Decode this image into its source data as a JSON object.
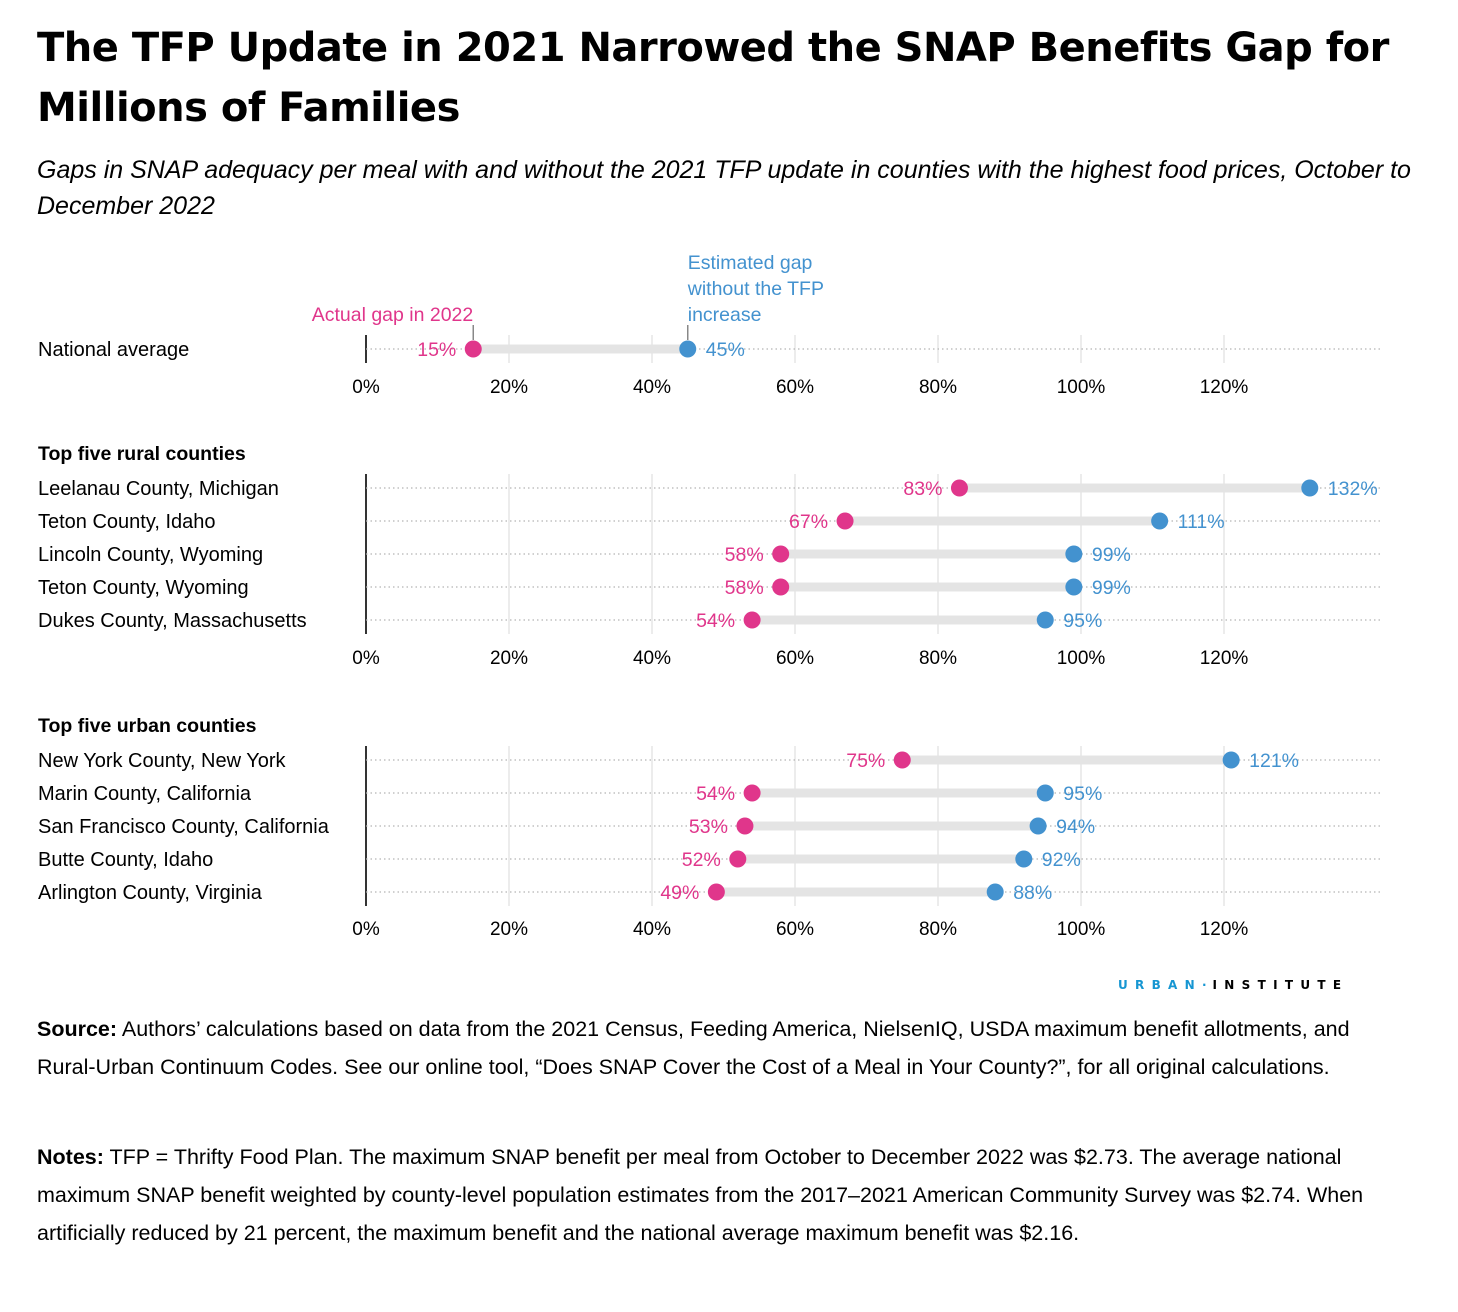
{
  "title": "The TFP Update in 2021 Narrowed the SNAP Benefits Gap for Millions of Families",
  "subtitle": "Gaps in SNAP adequacy per meal with and without the 2021 TFP update in counties with the highest food prices, October to December 2022",
  "colors": {
    "actual": "#e0368b",
    "estimated": "#4392cf",
    "track": "#e4e4e4",
    "grid": "#d9d9d9"
  },
  "chart_data": {
    "type": "dumbbell",
    "xlim": [
      0,
      140
    ],
    "xticks": [
      0,
      20,
      40,
      60,
      80,
      100,
      120
    ],
    "tick_labels": [
      "0%",
      "20%",
      "40%",
      "60%",
      "80%",
      "100%",
      "120%"
    ],
    "annotations": {
      "actual": "Actual gap in 2022",
      "estimated": [
        "Estimated gap",
        "without the TFP",
        "increase"
      ]
    },
    "panels": [
      {
        "heading": "",
        "rows": [
          {
            "label": "National average",
            "actual": 15,
            "estimated": 45,
            "actual_label": "15%",
            "estimated_label": "45%"
          }
        ]
      },
      {
        "heading": "Top five rural counties",
        "rows": [
          {
            "label": "Leelanau County, Michigan",
            "actual": 83,
            "estimated": 132,
            "actual_label": "83%",
            "estimated_label": "132%"
          },
          {
            "label": "Teton County, Idaho",
            "actual": 67,
            "estimated": 111,
            "actual_label": "67%",
            "estimated_label": "111%"
          },
          {
            "label": "Lincoln County, Wyoming",
            "actual": 58,
            "estimated": 99,
            "actual_label": "58%",
            "estimated_label": "99%"
          },
          {
            "label": "Teton County, Wyoming",
            "actual": 58,
            "estimated": 99,
            "actual_label": "58%",
            "estimated_label": "99%"
          },
          {
            "label": "Dukes County, Massachusetts",
            "actual": 54,
            "estimated": 95,
            "actual_label": "54%",
            "estimated_label": "95%"
          }
        ]
      },
      {
        "heading": "Top five urban counties",
        "rows": [
          {
            "label": "New York County, New York",
            "actual": 75,
            "estimated": 121,
            "actual_label": "75%",
            "estimated_label": "121%"
          },
          {
            "label": "Marin County, California",
            "actual": 54,
            "estimated": 95,
            "actual_label": "54%",
            "estimated_label": "95%"
          },
          {
            "label": "San Francisco County, California",
            "actual": 53,
            "estimated": 94,
            "actual_label": "53%",
            "estimated_label": "94%"
          },
          {
            "label": "Butte County, Idaho",
            "actual": 52,
            "estimated": 92,
            "actual_label": "52%",
            "estimated_label": "92%"
          },
          {
            "label": "Arlington County, Virginia",
            "actual": 49,
            "estimated": 88,
            "actual_label": "49%",
            "estimated_label": "88%"
          }
        ]
      }
    ]
  },
  "logo": {
    "left": "URBAN",
    "separator": "·",
    "right": "INSTITUTE"
  },
  "source": {
    "label": "Source:",
    "text": " Authors’ calculations based on data from the 2021 Census, Feeding America, NielsenIQ, USDA maximum benefit allotments, and Rural-Urban Continuum Codes. See our online tool, “Does SNAP Cover the Cost of a Meal in Your County?”, for all original calculations."
  },
  "notes": {
    "label": "Notes:",
    "text": " TFP = Thrifty Food Plan. The maximum SNAP benefit per meal from October to December 2022 was $2.73. The average national maximum SNAP benefit weighted by county-level population estimates from the 2017–2021 American Community Survey was $2.74. When artificially reduced by 21 percent, the maximum benefit and the national average maximum benefit was $2.16."
  }
}
